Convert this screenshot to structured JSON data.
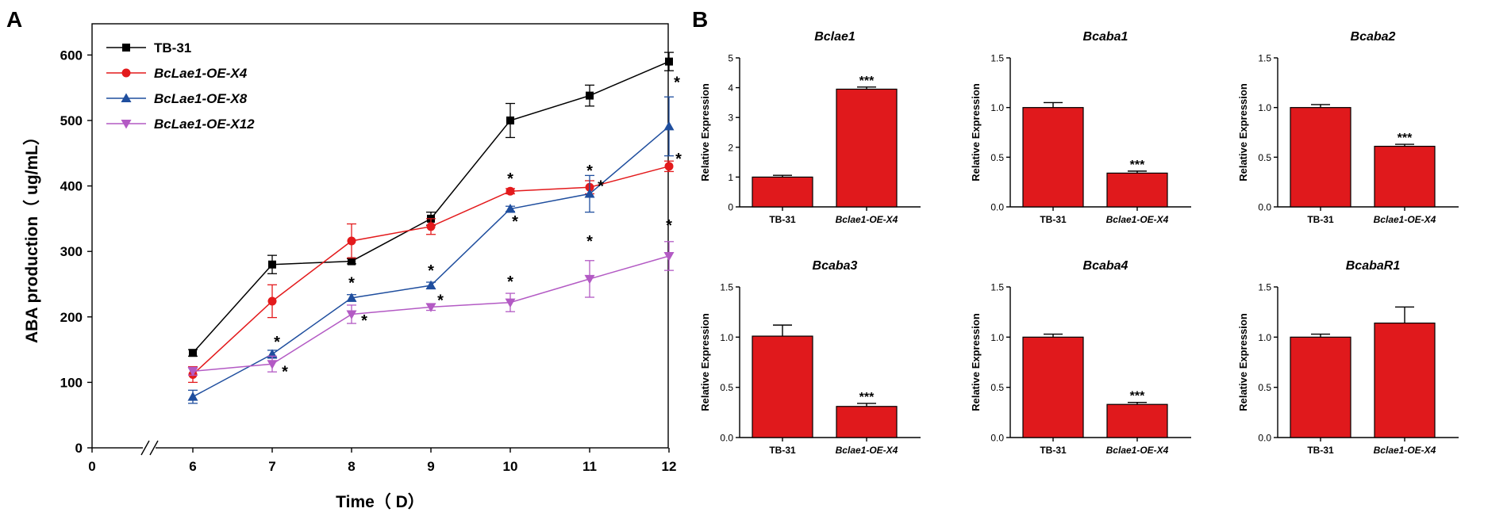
{
  "chart_data": [
    {
      "panel": "A",
      "type": "line",
      "xlabel": "Time（ D）",
      "ylabel": "ABA production（ ug/mL）",
      "ylim": [
        0,
        650
      ],
      "yticks": [
        0,
        100,
        200,
        300,
        400,
        500,
        600
      ],
      "xticks": [
        0,
        6,
        7,
        8,
        9,
        10,
        11,
        12
      ],
      "axis_break": true,
      "x": [
        6,
        7,
        8,
        9,
        10,
        11,
        12
      ],
      "legend_position": "top-left",
      "series": [
        {
          "name": "TB-31",
          "color": "#000000",
          "marker": "square",
          "italic": false,
          "values": [
            145,
            280,
            285,
            350,
            500,
            538,
            590
          ],
          "errors": [
            5,
            14,
            4,
            10,
            26,
            16,
            14
          ],
          "stars": [
            null,
            null,
            null,
            null,
            null,
            null,
            null
          ]
        },
        {
          "name": "BcLae1-OE-X4",
          "color": "#e31a1c",
          "marker": "circle",
          "italic": true,
          "values": [
            112,
            224,
            316,
            338,
            392,
            398,
            430
          ],
          "errors": [
            12,
            25,
            26,
            12,
            4,
            10,
            8
          ],
          "stars": [
            null,
            null,
            null,
            null,
            "*",
            "*",
            "*"
          ]
        },
        {
          "name": "BcLae1-OE-X8",
          "color": "#1f4e9e",
          "marker": "triangle-up",
          "italic": true,
          "values": [
            78,
            143,
            229,
            248,
            365,
            388,
            491
          ],
          "errors": [
            10,
            6,
            5,
            5,
            4,
            28,
            45
          ],
          "stars": [
            null,
            "*",
            "*",
            "*",
            "*",
            "*",
            "*"
          ]
        },
        {
          "name": "BcLae1-OE-X12",
          "color": "#b35ac4",
          "marker": "triangle-down",
          "italic": true,
          "values": [
            117,
            128,
            204,
            215,
            222,
            258,
            293
          ],
          "errors": [
            6,
            12,
            14,
            5,
            14,
            28,
            22
          ],
          "stars": [
            null,
            "*",
            "*",
            "*",
            "*",
            "*",
            "*"
          ]
        }
      ]
    },
    {
      "panel": "B",
      "type": "bar",
      "ylabel": "Relative Expression",
      "categories": [
        "TB-31",
        "Bclae1-OE-X4"
      ],
      "bar_color": "#e0191c",
      "subplots": [
        {
          "title": "Bclae1",
          "ylim": [
            0,
            5
          ],
          "yticks": [
            "0",
            "1",
            "2",
            "3",
            "4",
            "5"
          ],
          "values": [
            1.0,
            3.95
          ],
          "errors": [
            0.06,
            0.07
          ],
          "stars": [
            "",
            "***"
          ]
        },
        {
          "title": "Bcaba1",
          "ylim": [
            0,
            1.5
          ],
          "yticks": [
            "0.0",
            "0.5",
            "1.0",
            "1.5"
          ],
          "values": [
            1.0,
            0.34
          ],
          "errors": [
            0.05,
            0.02
          ],
          "stars": [
            "",
            "***"
          ]
        },
        {
          "title": "Bcaba2",
          "ylim": [
            0,
            1.5
          ],
          "yticks": [
            "0.0",
            "0.5",
            "1.0",
            "1.5"
          ],
          "values": [
            1.0,
            0.61
          ],
          "errors": [
            0.03,
            0.02
          ],
          "stars": [
            "",
            "***"
          ]
        },
        {
          "title": "Bcaba3",
          "ylim": [
            0,
            1.5
          ],
          "yticks": [
            "0.0",
            "0.5",
            "1.0",
            "1.5"
          ],
          "values": [
            1.01,
            0.31
          ],
          "errors": [
            0.11,
            0.03
          ],
          "stars": [
            "",
            "***"
          ]
        },
        {
          "title": "Bcaba4",
          "ylim": [
            0,
            1.5
          ],
          "yticks": [
            "0.0",
            "0.5",
            "1.0",
            "1.5"
          ],
          "values": [
            1.0,
            0.33
          ],
          "errors": [
            0.03,
            0.02
          ],
          "stars": [
            "",
            "***"
          ]
        },
        {
          "title": "BcabaR1",
          "ylim": [
            0,
            1.5
          ],
          "yticks": [
            "0.0",
            "0.5",
            "1.0",
            "1.5"
          ],
          "values": [
            1.0,
            1.14
          ],
          "errors": [
            0.03,
            0.16
          ],
          "stars": [
            "",
            ""
          ]
        }
      ]
    }
  ],
  "panel_labels": [
    "A",
    "B"
  ]
}
